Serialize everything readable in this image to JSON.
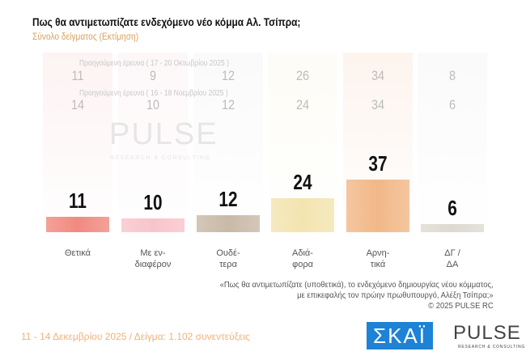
{
  "chart_data": {
    "type": "bar",
    "title": "Πως θα αντιμετωπίζατε ενδεχόμενο νέο κόμμα Αλ. Τσίπρα;",
    "subtitle": "Σύνολο δείγματος  (Εκτίμηση)",
    "categories": [
      "Θετικά",
      "Με εν-\nδιαφέρον",
      "Ουδέ-\nτερα",
      "Αδιά-\nφορα",
      "Αρνη-\nτικά",
      "ΔΓ /\nΔΑ"
    ],
    "values": [
      11,
      10,
      12,
      24,
      37,
      6
    ],
    "colors": [
      "#f08a80",
      "#f8c4cc",
      "#c9b9a8",
      "#f3e4b0",
      "#f2b888",
      "#dedad2"
    ],
    "previous": [
      {
        "label": "Προηγούμενη έρευνα ( 17 - 20 Οκτωβρίου 2025 )",
        "values": [
          11,
          9,
          12,
          26,
          34,
          8
        ]
      },
      {
        "label": "Προηγούμενη έρευνα ( 16 - 18 Νοεμβρίου 2025 )",
        "values": [
          14,
          10,
          12,
          24,
          34,
          6
        ]
      }
    ],
    "xlabel": "",
    "ylabel": "",
    "ylim": [
      0,
      40
    ]
  },
  "note": [
    "«Πως θα αντιμετωπίζατε (υποθετικά), το ενδεχόμενο δημιουργίας νέου κόμματος,",
    "με επικεφαλής τον πρώην πρωθυπουργό, Αλέξη Τσίπρα;»",
    "©  2025  PULSE RC"
  ],
  "footer": "11 - 14 Δεκεμβρίου 2025  /  Δείγμα:  1.102 συνεντεύξεις",
  "logos": {
    "skai": "ΣΚΑΪ",
    "pulse": "PULSE",
    "pulse_sub": "RESEARCH & CONSULTING"
  }
}
